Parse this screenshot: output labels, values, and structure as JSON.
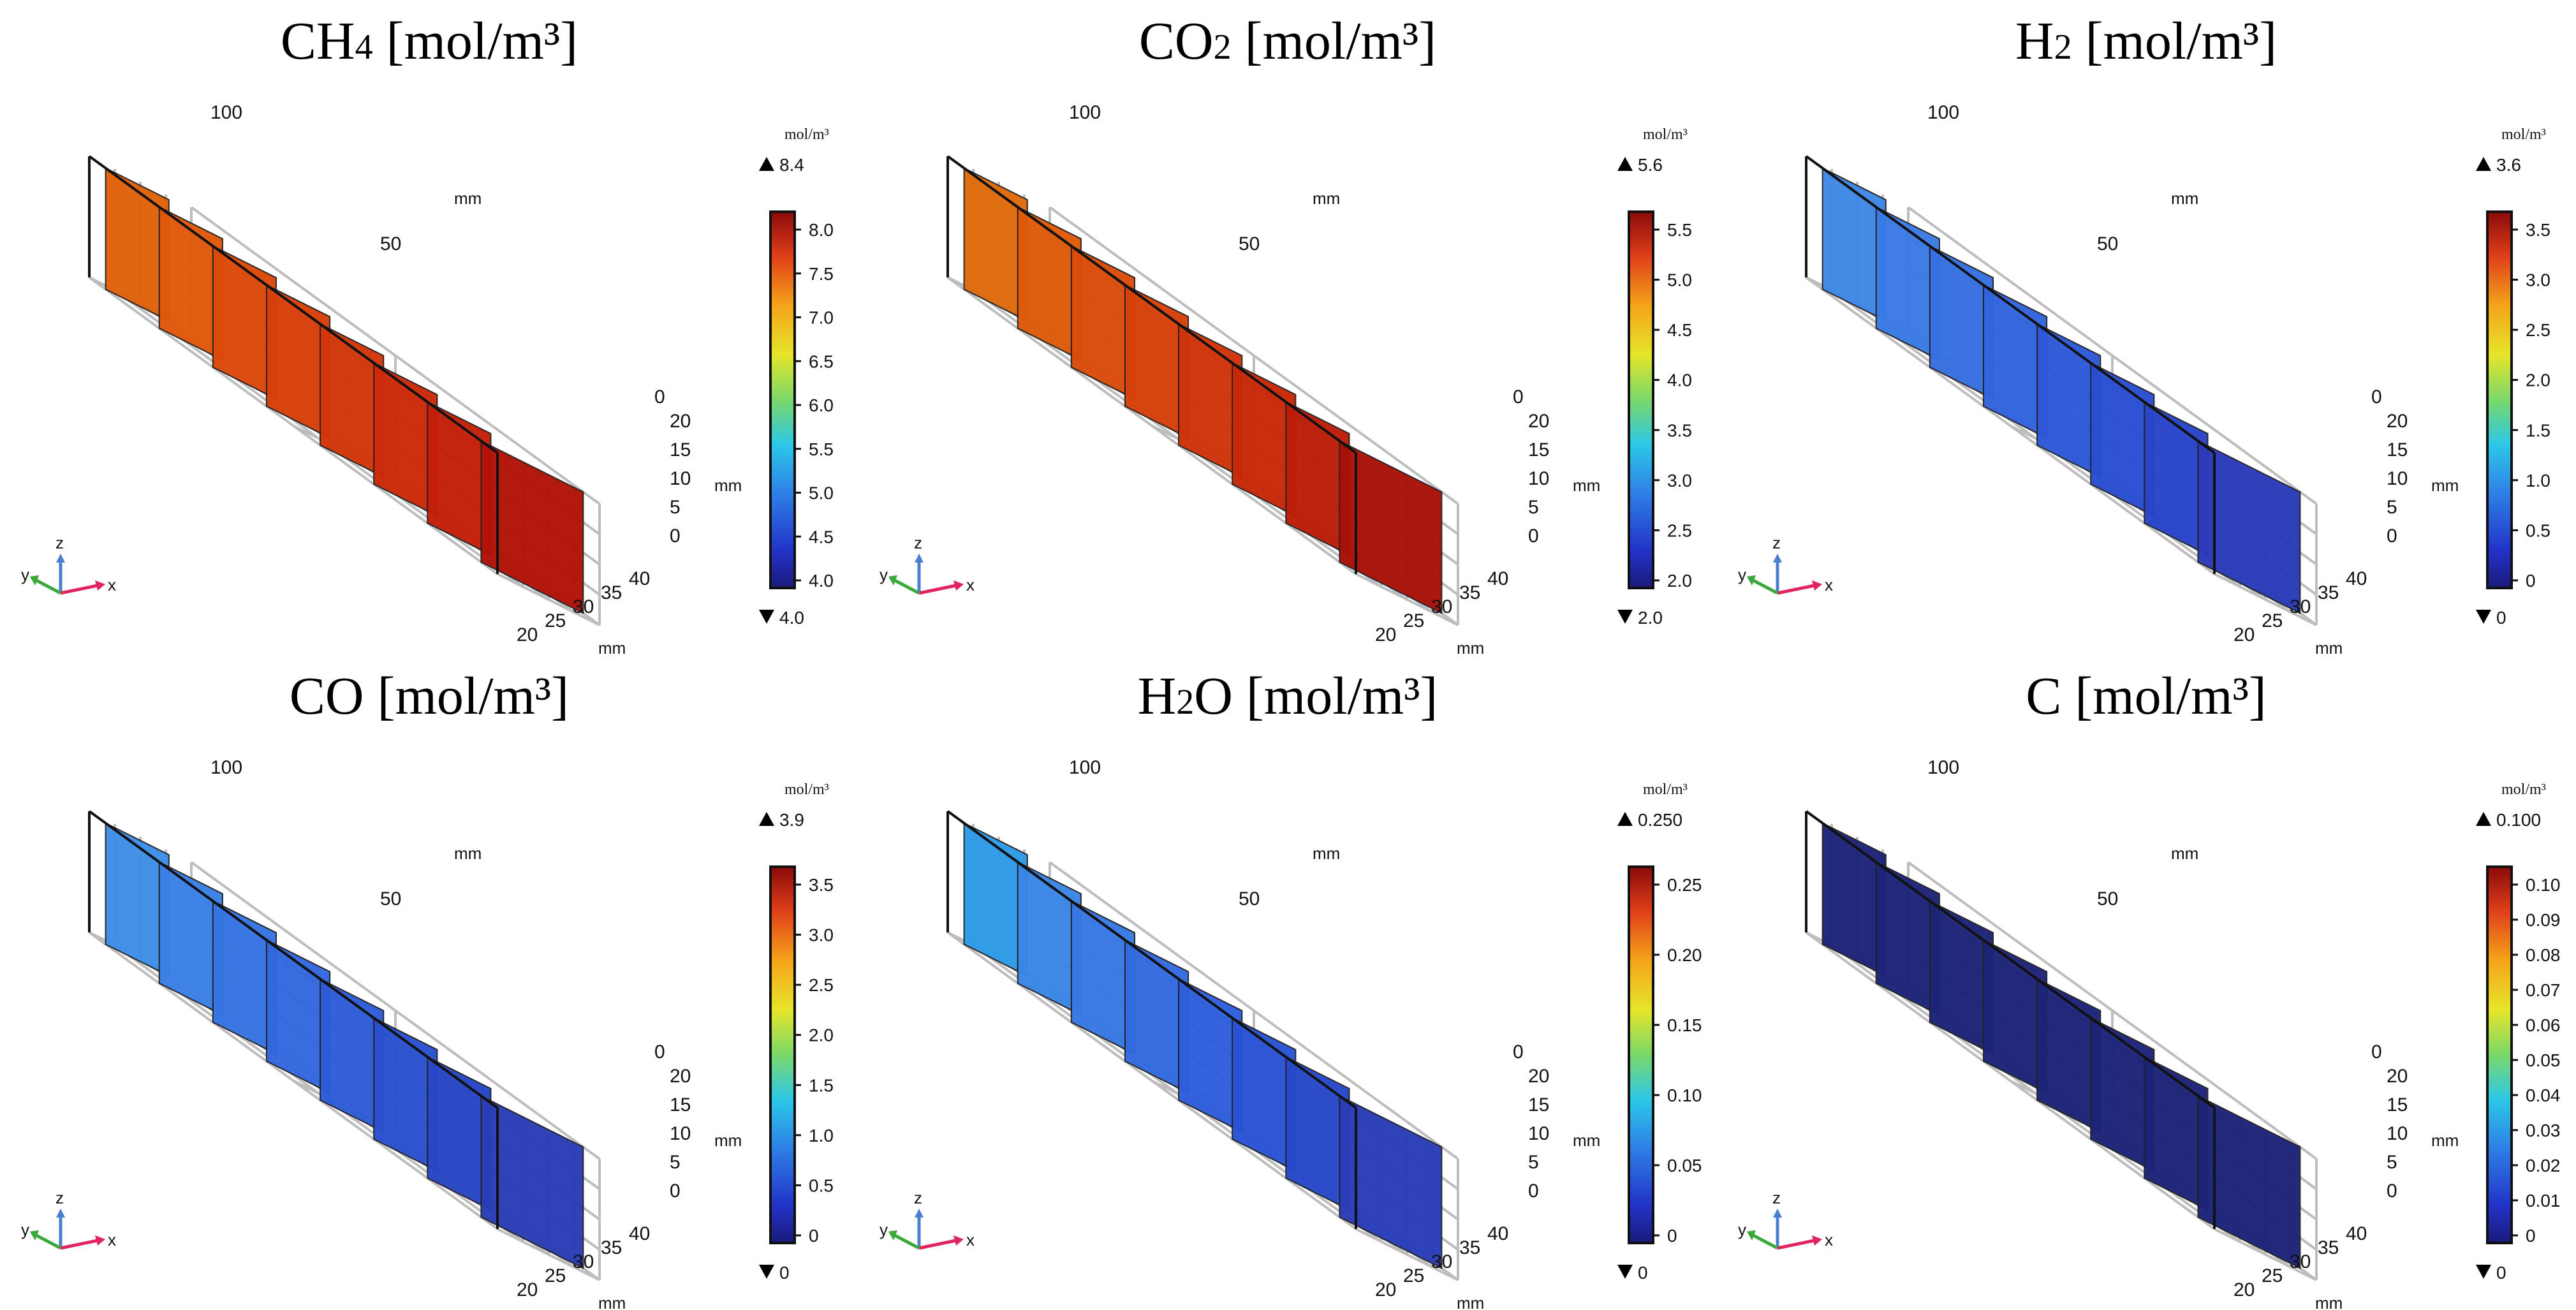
{
  "figure": {
    "panels": [
      {
        "id": "ch4",
        "species": "CH",
        "sub": "4",
        "unit": " [mol/m³]",
        "legend_unit": "mol/m³",
        "max_label": "8.4",
        "min_label": "4.0",
        "ticks": [
          "8.0",
          "7.5",
          "7.0",
          "6.5",
          "6.0",
          "5.5",
          "5.0",
          "4.5",
          "4.0"
        ],
        "slice_colors": [
          "#e0620a",
          "#e0580a",
          "#dc4a0a",
          "#d8400a",
          "#d2360a",
          "#cc2a0a",
          "#c41f08",
          "#b21208"
        ]
      },
      {
        "id": "co2",
        "species": "CO",
        "sub": "2",
        "unit": " [mol/m³]",
        "legend_unit": "mol/m³",
        "max_label": "5.6",
        "min_label": "2.0",
        "ticks": [
          "5.5",
          "5.0",
          "4.5",
          "4.0",
          "3.5",
          "3.0",
          "2.5",
          "2.0"
        ],
        "slice_colors": [
          "#e06a0c",
          "#de5a0a",
          "#da4c0a",
          "#d6400a",
          "#d0340a",
          "#c82808",
          "#bc1c08",
          "#aa1008"
        ]
      },
      {
        "id": "h2",
        "species": "H",
        "sub": "2",
        "unit": " [mol/m³]",
        "legend_unit": "mol/m³",
        "max_label": "3.6",
        "min_label": "0",
        "ticks": [
          "3.5",
          "3.0",
          "2.5",
          "2.0",
          "1.5",
          "1.0",
          "0.5",
          "0"
        ],
        "slice_colors": [
          "#3e88e6",
          "#3a7ae6",
          "#3670e2",
          "#3264de",
          "#2e58d8",
          "#2a4ed2",
          "#2844c8",
          "#2a3ab8"
        ]
      },
      {
        "id": "co",
        "species": "CO",
        "sub": "",
        "unit": " [mol/m³]",
        "legend_unit": "mol/m³",
        "max_label": "3.9",
        "min_label": "0",
        "ticks": [
          "3.5",
          "3.0",
          "2.5",
          "2.0",
          "1.5",
          "1.0",
          "0.5",
          "0"
        ],
        "slice_colors": [
          "#3e8ee8",
          "#3a80e6",
          "#3674e4",
          "#3268de",
          "#2e5cd8",
          "#2a50d0",
          "#2846c6",
          "#2a3cb6"
        ]
      },
      {
        "id": "h2o",
        "species": "H",
        "sub": "2",
        "species_tail": "O",
        "unit": " [mol/m³]",
        "legend_unit": "mol/m³",
        "max_label": "0.250",
        "min_label": "0",
        "ticks": [
          "0.25",
          "0.20",
          "0.15",
          "0.10",
          "0.05",
          "0"
        ],
        "slice_colors": [
          "#2e9ae8",
          "#3a86e6",
          "#3678e4",
          "#326ae0",
          "#2e5edc",
          "#2a52d4",
          "#2848ca",
          "#2a3cb8"
        ]
      },
      {
        "id": "c",
        "species": "C",
        "sub": "",
        "unit": " [mol/m³]",
        "legend_unit": "mol/m³",
        "max_label": "0.100",
        "min_label": "0",
        "ticks": [
          "0.10",
          "0.09",
          "0.08",
          "0.07",
          "0.06",
          "0.05",
          "0.04",
          "0.03",
          "0.02",
          "0.01",
          "0"
        ],
        "slice_colors": [
          "#1c2478",
          "#1c2478",
          "#1c2478",
          "#1c2478",
          "#1c2478",
          "#1c2478",
          "#1c2478",
          "#1c2478"
        ]
      }
    ],
    "axes": {
      "long_ticks": [
        "100",
        "50",
        "0"
      ],
      "long_unit": "mm",
      "z_ticks": [
        "20",
        "15",
        "10",
        "5",
        "0"
      ],
      "z_unit": "mm",
      "x_ticks": [
        "20",
        "25",
        "30",
        "35",
        "40"
      ],
      "x_unit": "mm",
      "triad": {
        "x": "x",
        "y": "y",
        "z": "z"
      }
    },
    "colors": {
      "x_axis": "#e0245e",
      "y_axis": "#3aa83a",
      "z_axis": "#4a7fd0"
    }
  }
}
